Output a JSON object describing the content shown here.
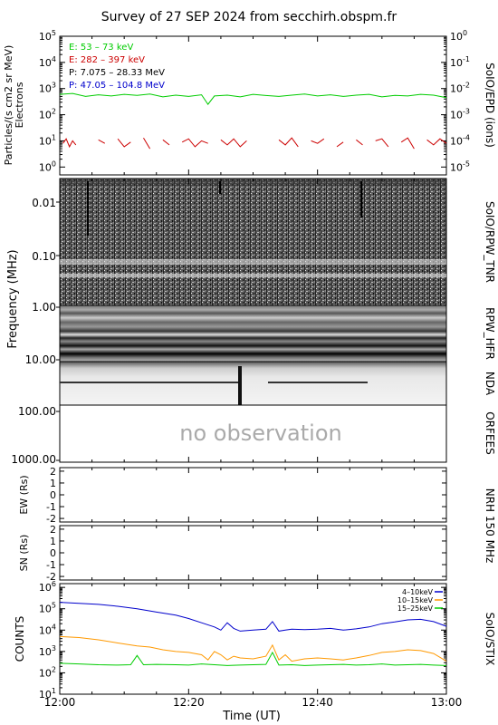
{
  "title": "Survey of 27 SEP 2024 from secchirh.obspm.fr",
  "xaxis": {
    "label": "Time (UT)",
    "ticks": [
      "12:00",
      "12:20",
      "12:40",
      "13:00"
    ],
    "range_minutes": [
      0,
      60
    ]
  },
  "chart_data": [
    {
      "type": "line",
      "panel": "SoIO/EPD",
      "right_label": "SoIO/EPD (ions)",
      "ylabel": "Particles/(s cm2 sr MeV)",
      "ylabel2": "Electrons",
      "yscale": "log",
      "ylim": [
        0.5,
        100000
      ],
      "yticks": [
        "10^0",
        "10^1",
        "10^2",
        "10^3",
        "10^4",
        "10^5"
      ],
      "yticks_right": [
        "10^-5",
        "10^-4",
        "10^-3",
        "10^-2",
        "10^-1",
        "10^0"
      ],
      "legend": [
        {
          "label": "E: 53 – 73 keV",
          "color": "#00cc00"
        },
        {
          "label": "E: 282 – 397 keV",
          "color": "#cc0000"
        },
        {
          "label": "P: 7.075 – 28.33 MeV",
          "color": "#000000"
        },
        {
          "label": "P: 47.05 – 104.8 MeV",
          "color": "#0000cc"
        }
      ],
      "series": [
        {
          "name": "E: 53 – 73 keV",
          "color": "#00cc00",
          "x": [
            0,
            2,
            4,
            6,
            8,
            10,
            12,
            14,
            16,
            18,
            20,
            22,
            23,
            24,
            26,
            28,
            30,
            32,
            34,
            36,
            38,
            40,
            42,
            44,
            46,
            48,
            50,
            52,
            54,
            56,
            58,
            60
          ],
          "values": [
            600,
            650,
            500,
            580,
            520,
            600,
            550,
            620,
            480,
            560,
            500,
            580,
            250,
            520,
            560,
            480,
            600,
            540,
            500,
            560,
            620,
            520,
            580,
            500,
            560,
            600,
            480,
            550,
            520,
            600,
            560,
            450
          ]
        },
        {
          "name": "E: 282 – 397 keV",
          "color": "#cc0000",
          "x": [
            0.5,
            1,
            1.5,
            2,
            2.5,
            3,
            4,
            5,
            6,
            7,
            8,
            9,
            10,
            11,
            12,
            13,
            14,
            15,
            16,
            17,
            18,
            19,
            20,
            21,
            22,
            23,
            24,
            25,
            26,
            27,
            28,
            29,
            30,
            31,
            33,
            34,
            35,
            36,
            37,
            38,
            39,
            40,
            41,
            42,
            43,
            44,
            45,
            46,
            47,
            48,
            49,
            50,
            51,
            52,
            53,
            54,
            55,
            56,
            57,
            58,
            59,
            60
          ],
          "values": [
            8,
            12,
            6,
            10,
            7,
            null,
            10,
            null,
            11,
            8,
            null,
            12,
            6,
            9,
            null,
            13,
            5,
            null,
            11,
            7,
            null,
            9,
            12,
            6,
            10,
            8,
            null,
            11,
            7,
            12,
            6,
            10,
            null,
            9,
            null,
            11,
            7,
            13,
            6,
            null,
            10,
            8,
            12,
            null,
            6,
            9,
            null,
            11,
            7,
            null,
            10,
            12,
            6,
            null,
            9,
            13,
            5,
            null,
            11,
            7,
            12,
            8
          ]
        }
      ]
    },
    {
      "type": "heatmap",
      "panel": "SoIO/RPW_TNR",
      "right_label": "SoIO/RPW_TNR",
      "ylabel": "Frequency (MHz)",
      "yticks": [
        "0.01",
        "0.10",
        "1.00"
      ]
    },
    {
      "type": "heatmap",
      "panel": "RPW_HFR",
      "right_label": "RPW_HFR",
      "yticks": [
        "1.00",
        "10.00"
      ]
    },
    {
      "type": "heatmap",
      "panel": "NDA",
      "right_label": "NDA",
      "yticks": [
        "10.00",
        "100.00"
      ]
    },
    {
      "type": "heatmap",
      "panel": "ORFEES",
      "right_label": "ORFEES",
      "yticks": [
        "100.00",
        "1000.00"
      ],
      "annotation": "no observation"
    },
    {
      "type": "scatter",
      "panel": "NRH 150 MHz EW",
      "right_label": "NRH 150 MHz",
      "ylabel": "EW (Rs)",
      "ylim": [
        -2.3,
        2.3
      ],
      "yticks": [
        "2",
        "1",
        "0",
        "-1",
        "-2"
      ]
    },
    {
      "type": "scatter",
      "panel": "NRH 150 MHz SN",
      "ylabel": "SN (Rs)",
      "ylim": [
        -2.3,
        2.3
      ],
      "yticks": [
        "2",
        "1",
        "0",
        "-1",
        "-2"
      ]
    },
    {
      "type": "line",
      "panel": "SoIO/STIX",
      "right_label": "SoIO/STIX",
      "ylabel": "COUNTS",
      "yscale": "log",
      "ylim": [
        10,
        1500000
      ],
      "yticks": [
        "10^1",
        "10^2",
        "10^3",
        "10^4",
        "10^5",
        "10^6"
      ],
      "legend": [
        {
          "label": "4–10keV",
          "color": "#0000cc"
        },
        {
          "label": "10–15keV",
          "color": "#ff9900"
        },
        {
          "label": "15–25keV",
          "color": "#00cc00"
        }
      ],
      "series": [
        {
          "name": "4–10keV",
          "color": "#0000cc",
          "x": [
            0,
            3,
            6,
            9,
            12,
            15,
            18,
            20,
            22,
            24,
            25,
            26,
            27,
            28,
            30,
            32,
            33,
            34,
            35,
            36,
            38,
            40,
            42,
            44,
            46,
            48,
            50,
            52,
            54,
            56,
            58,
            60
          ],
          "values": [
            200000,
            180000,
            160000,
            130000,
            100000,
            70000,
            50000,
            35000,
            22000,
            14000,
            10000,
            22000,
            12000,
            9000,
            10000,
            11000,
            25000,
            9000,
            10000,
            11000,
            10500,
            11000,
            12000,
            10000,
            11500,
            14000,
            20000,
            24000,
            30000,
            32000,
            25000,
            15000
          ]
        },
        {
          "name": "10–15keV",
          "color": "#ff9900",
          "x": [
            0,
            3,
            6,
            9,
            12,
            14,
            16,
            18,
            20,
            22,
            23,
            24,
            25,
            26,
            27,
            28,
            30,
            32,
            33,
            34,
            35,
            36,
            38,
            40,
            42,
            44,
            46,
            48,
            50,
            52,
            54,
            56,
            58,
            60
          ],
          "values": [
            5000,
            4500,
            3500,
            2500,
            1800,
            1600,
            1200,
            1000,
            900,
            700,
            400,
            1000,
            700,
            400,
            600,
            500,
            450,
            600,
            2000,
            400,
            700,
            350,
            450,
            500,
            450,
            400,
            500,
            650,
            900,
            1000,
            1200,
            1100,
            800,
            350
          ]
        },
        {
          "name": "15–25keV",
          "color": "#00cc00",
          "x": [
            0,
            3,
            6,
            9,
            11,
            12,
            13,
            15,
            18,
            20,
            22,
            24,
            26,
            28,
            30,
            32,
            33,
            34,
            36,
            38,
            40,
            42,
            44,
            46,
            48,
            50,
            52,
            54,
            56,
            58,
            60
          ],
          "values": [
            280,
            260,
            240,
            230,
            240,
            650,
            240,
            250,
            240,
            230,
            260,
            240,
            220,
            230,
            240,
            250,
            900,
            230,
            240,
            220,
            230,
            240,
            250,
            230,
            240,
            260,
            230,
            240,
            250,
            230,
            220
          ]
        }
      ]
    }
  ]
}
